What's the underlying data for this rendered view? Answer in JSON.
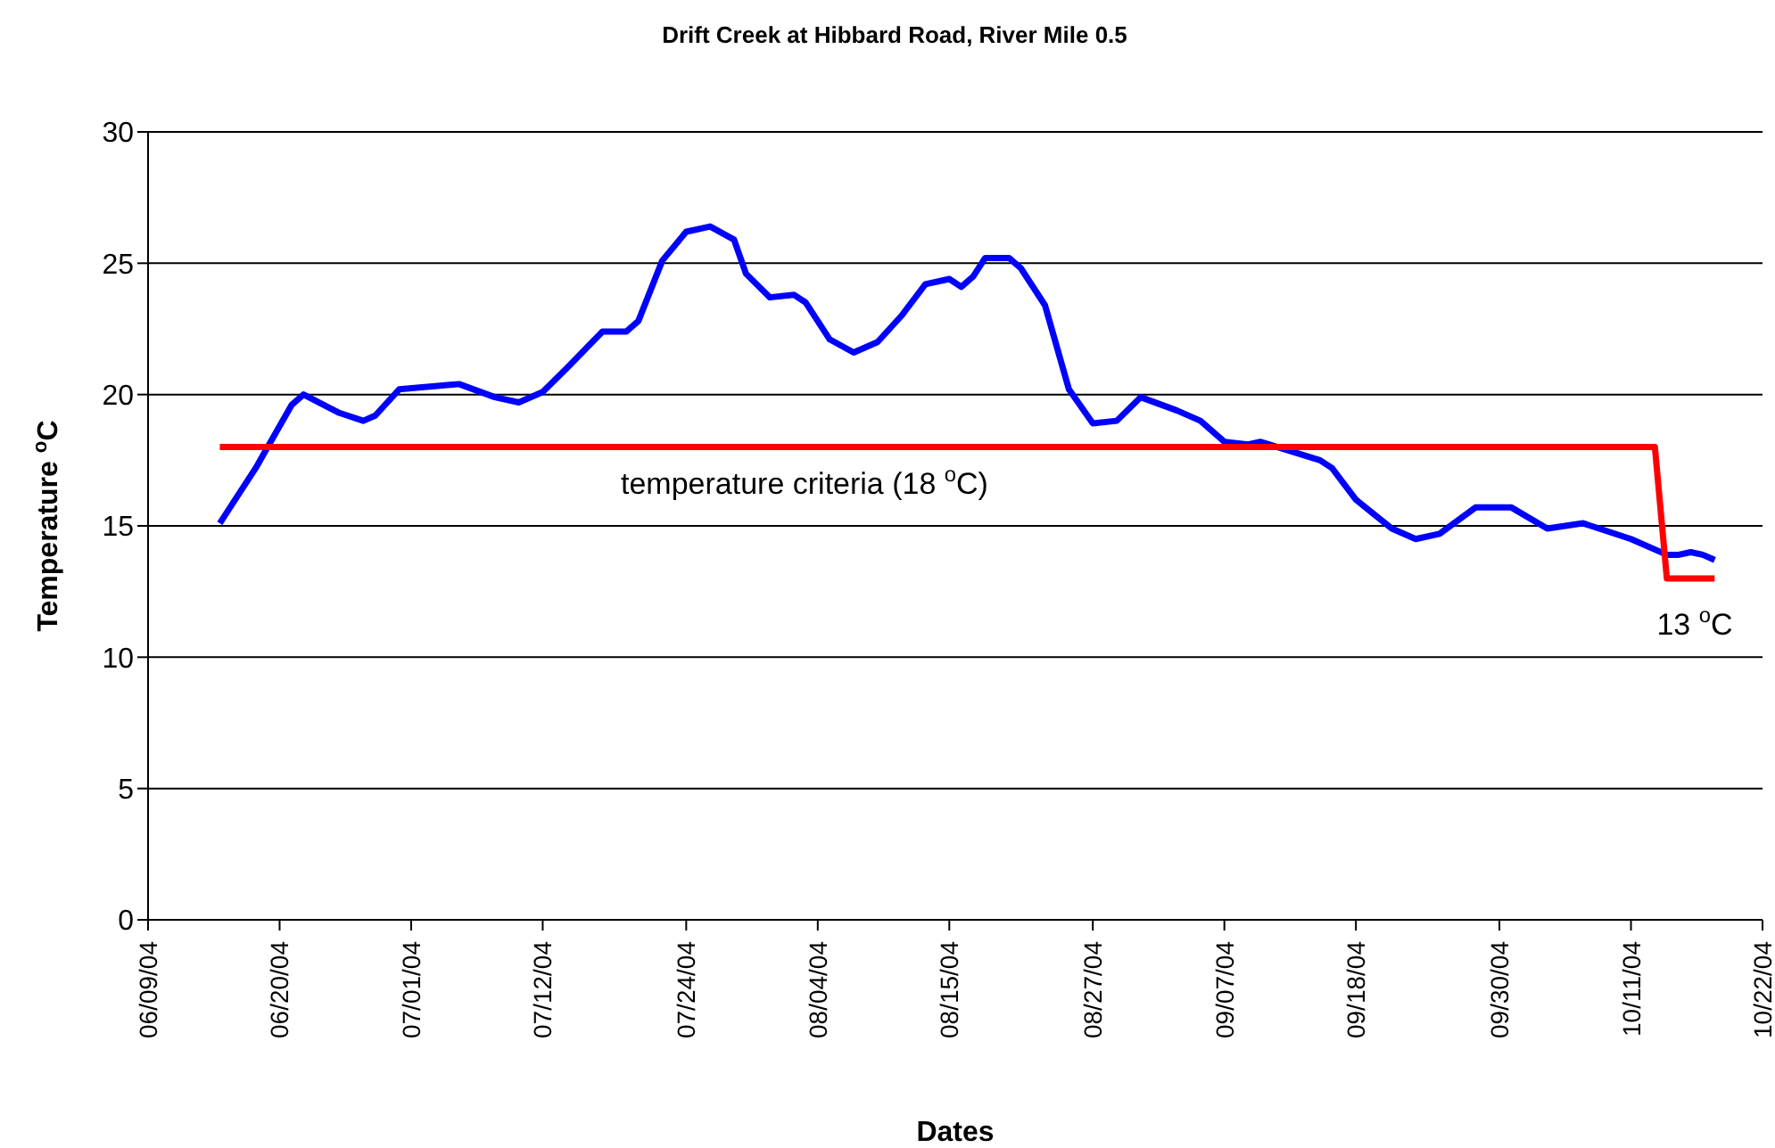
{
  "chart_data": {
    "type": "line",
    "title": "Drift Creek at Hibbard Road, River Mile 0.5",
    "xlabel": "Dates",
    "ylabel": "Temperature $^{o}$C",
    "series": [
      {
        "color": "#0000ff",
        "x": [
          "--06-15",
          "--06-18",
          "--06-21",
          "--06-22",
          "--06-25",
          "--06-27",
          "--06-28",
          "--06-30",
          "--07-05",
          "--07-08",
          "--07-10",
          "--07-12",
          "--07-14",
          "--07-17",
          "--07-19",
          "--07-20",
          "--07-22",
          "--07-24",
          "--07-26",
          "--07-28",
          "--07-29",
          "--07-31",
          "--08-02",
          "--08-03",
          "--08-05",
          "--08-07",
          "--08-09",
          "--08-11",
          "--08-13",
          "--08-15",
          "--08-16",
          "--08-17",
          "--08-18",
          "--08-20",
          "--08-21",
          "--08-23",
          "--08-25",
          "--08-27",
          "--08-29",
          "--08-31",
          "--09-03",
          "--09-05",
          "--09-07",
          "--09-09",
          "--09-10",
          "--09-15",
          "--09-16",
          "--09-18",
          "--09-21",
          "--09-23",
          "--09-25",
          "--09-28",
          "--10-01",
          "--10-04",
          "--10-07",
          "--10-11",
          "--10-14",
          "--10-15",
          "--10-16",
          "--10-17",
          "--10-18"
        ],
        "values": [
          15.1,
          17.2,
          19.6,
          20.0,
          19.3,
          19.0,
          19.2,
          20.2,
          20.4,
          19.9,
          19.7,
          20.1,
          21.0,
          22.4,
          22.4,
          22.8,
          25.1,
          26.2,
          26.4,
          25.9,
          24.6,
          23.7,
          23.8,
          23.5,
          22.1,
          21.6,
          22.0,
          23.0,
          24.2,
          24.4,
          24.1,
          24.5,
          25.2,
          25.2,
          24.8,
          23.4,
          20.2,
          18.9,
          19.0,
          19.9,
          19.4,
          19.0,
          18.2,
          18.1,
          18.2,
          17.5,
          17.2,
          16.0,
          14.9,
          14.5,
          14.7,
          15.7,
          15.7,
          14.9,
          15.1,
          14.5,
          13.9,
          13.9,
          14.0,
          13.9,
          13.7
        ]
      },
      {
        "color": "#ff0000",
        "x": [
          "--06-15",
          "--10-13",
          "--10-14",
          "--10-18"
        ],
        "values": [
          18,
          18,
          13,
          13
        ]
      }
    ],
    "xlim": [
      "--06-09",
      "--10-22"
    ],
    "xticks": [
      {
        "value": "--06-09",
        "label": "06/09/04"
      },
      {
        "value": "--06-20",
        "label": "06/20/04"
      },
      {
        "value": "--07-01",
        "label": "07/01/04"
      },
      {
        "value": "--07-12",
        "label": "07/12/04"
      },
      {
        "value": "--07-24",
        "label": "07/24/04"
      },
      {
        "value": "--08-04",
        "label": "08/04/04"
      },
      {
        "value": "--08-15",
        "label": "08/15/04"
      },
      {
        "value": "--08-27",
        "label": "08/27/04"
      },
      {
        "value": "--09-07",
        "label": "09/07/04"
      },
      {
        "value": "--09-18",
        "label": "09/18/04"
      },
      {
        "value": "--09-30",
        "label": "09/30/04"
      },
      {
        "value": "--10-11",
        "label": "10/11/04"
      },
      {
        "value": "--10-22",
        "label": "10/22/04"
      }
    ],
    "ylim": [
      0,
      30
    ],
    "yticks": [
      0,
      5,
      10,
      15,
      20,
      25,
      30
    ],
    "grid": "y",
    "marker": "none",
    "line_style": "solid",
    "annotations": [
      "temperature criteria (18 $^{o}$C)",
      "13 $^{o}$C"
    ]
  }
}
